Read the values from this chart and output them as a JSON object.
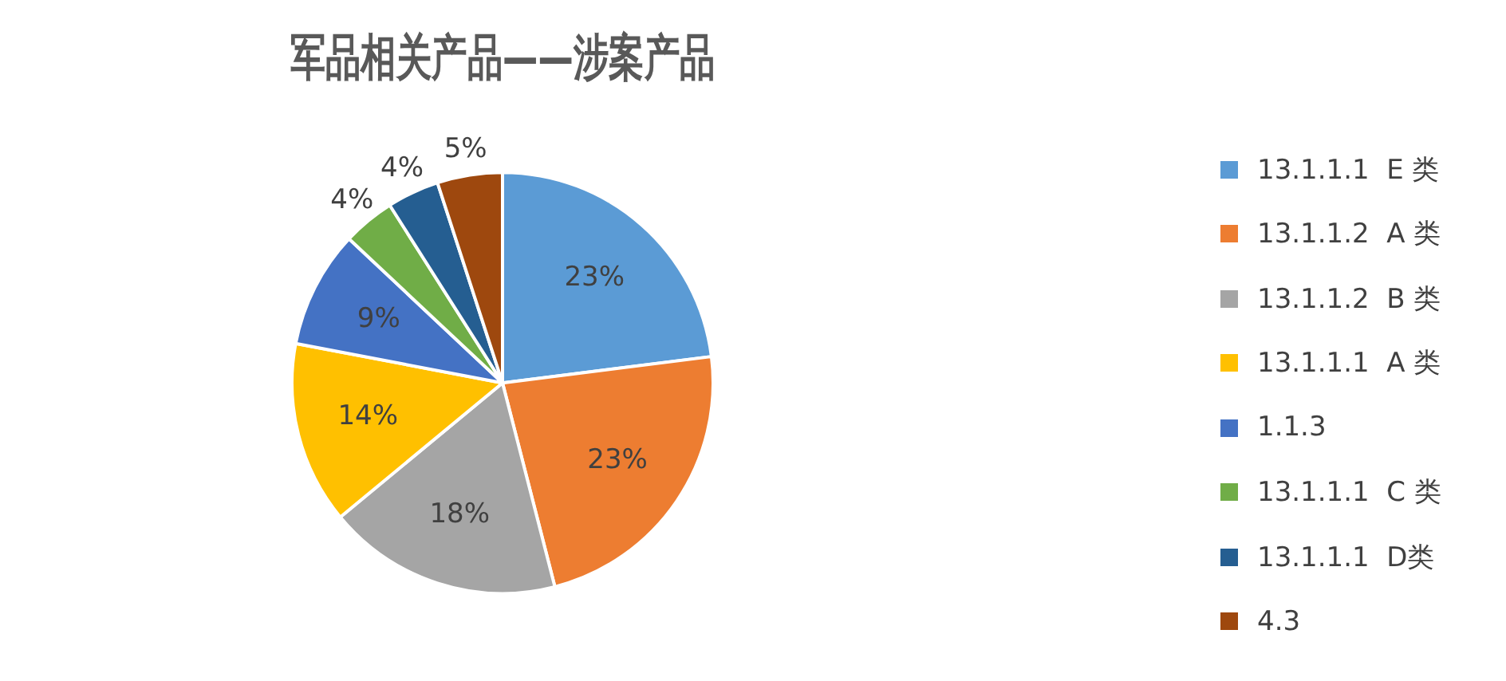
{
  "chart_data": {
    "type": "pie",
    "title": "军品相关产品——涉案产品",
    "categories": [
      "13.1.1.1  E 类",
      "13.1.1.2  A 类",
      "13.1.1.2  B 类",
      "13.1.1.1  A 类",
      "1.1.3",
      "13.1.1.1  C 类",
      "13.1.1.1  D类",
      "4.3"
    ],
    "values": [
      23,
      23,
      18,
      14,
      9,
      4,
      4,
      5
    ],
    "colors": [
      "#5b9bd5",
      "#ed7d31",
      "#a5a5a5",
      "#ffc000",
      "#4472c4",
      "#70ad47",
      "#255e91",
      "#9e480e"
    ],
    "value_labels": [
      "23%",
      "23%",
      "18%",
      "14%",
      "9%",
      "4%",
      "4%",
      "5%"
    ],
    "legend": "right"
  }
}
